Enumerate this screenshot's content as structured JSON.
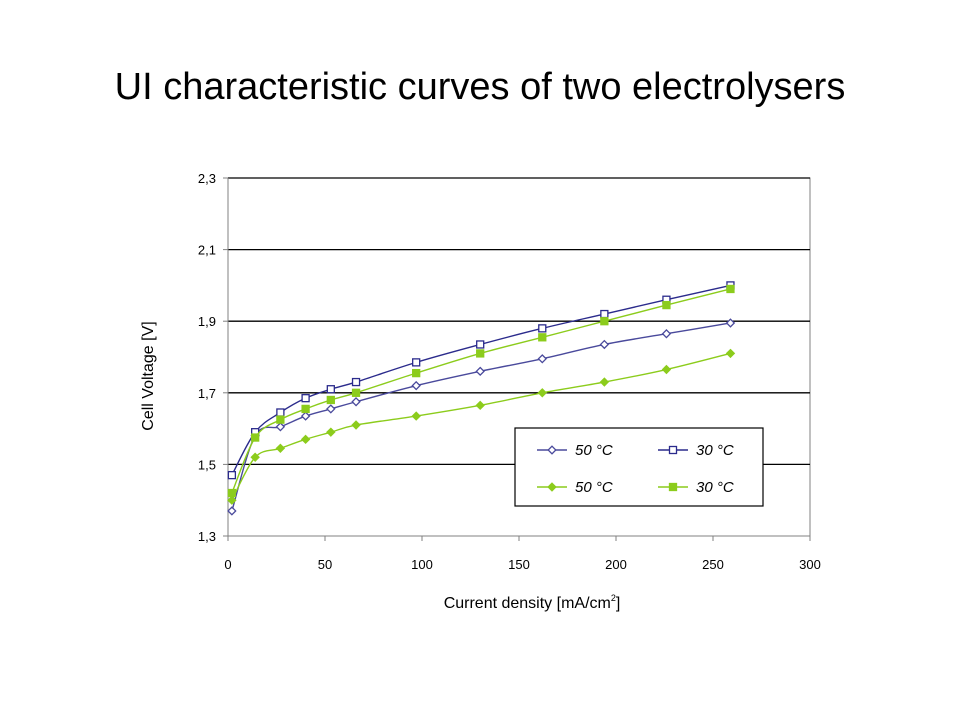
{
  "chart_data": {
    "type": "line",
    "title": "UI characteristic curves of two electrolysers",
    "xlabel": "Current density [mA/cm",
    "xlabel_sup": "2",
    "xlabel_suffix": "]",
    "ylabel": "Cell Voltage [V]",
    "xlim": [
      0,
      300
    ],
    "ylim": [
      1.3,
      2.3
    ],
    "xticks": [
      0,
      50,
      100,
      150,
      200,
      250,
      300
    ],
    "yticks": [
      1.3,
      1.5,
      1.7,
      1.9,
      2.1,
      2.3
    ],
    "xtick_labels": [
      "0",
      "50",
      "100",
      "150",
      "200",
      "250",
      "300"
    ],
    "ytick_labels": [
      "1,3",
      "1,5",
      "1,7",
      "1,9",
      "2,1",
      "2,3"
    ],
    "grid": "horizontal",
    "legend_position": "lower-right",
    "series": [
      {
        "name": "50 °C",
        "color": "#4a4a9c",
        "marker": "open-diamond",
        "x": [
          2,
          14,
          27,
          40,
          53,
          66,
          97,
          130,
          162,
          194,
          226,
          259
        ],
        "y": [
          1.37,
          1.58,
          1.605,
          1.635,
          1.655,
          1.675,
          1.72,
          1.76,
          1.795,
          1.835,
          1.865,
          1.895
        ]
      },
      {
        "name": "30 °C",
        "color": "#2b2b8c",
        "marker": "open-square",
        "x": [
          2,
          14,
          27,
          40,
          53,
          66,
          97,
          130,
          162,
          194,
          226,
          259
        ],
        "y": [
          1.47,
          1.59,
          1.645,
          1.685,
          1.71,
          1.73,
          1.785,
          1.835,
          1.88,
          1.92,
          1.96,
          2.0
        ]
      },
      {
        "name": "50 °C",
        "color": "#8ccc1c",
        "marker": "filled-diamond",
        "x": [
          2,
          14,
          27,
          40,
          53,
          66,
          97,
          130,
          162,
          194,
          226,
          259
        ],
        "y": [
          1.4,
          1.52,
          1.545,
          1.57,
          1.59,
          1.61,
          1.635,
          1.665,
          1.7,
          1.73,
          1.765,
          1.81
        ]
      },
      {
        "name": "30 °C",
        "color": "#8ccc1c",
        "marker": "filled-square",
        "x": [
          2,
          14,
          27,
          40,
          53,
          66,
          97,
          130,
          162,
          194,
          226,
          259
        ],
        "y": [
          1.42,
          1.575,
          1.625,
          1.655,
          1.68,
          1.7,
          1.755,
          1.81,
          1.855,
          1.9,
          1.945,
          1.99
        ]
      }
    ]
  }
}
